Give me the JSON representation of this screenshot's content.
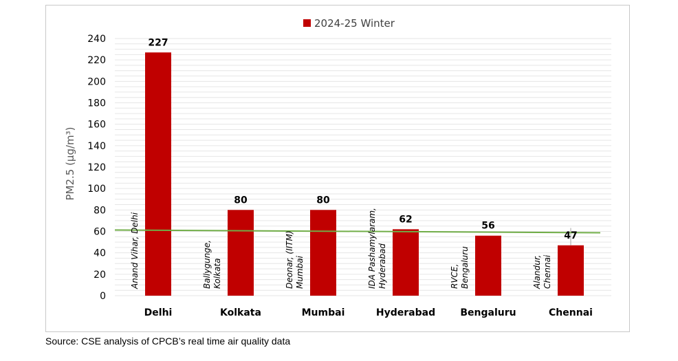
{
  "chart_data": {
    "type": "bar",
    "categories": [
      "Delhi",
      "Kolkata",
      "Mumbai",
      "Hyderabad",
      "Bengaluru",
      "Chennai"
    ],
    "series": [
      {
        "name": "2024-25 Winter",
        "values": [
          227,
          80,
          80,
          62,
          56,
          47
        ],
        "color": "#c00000"
      }
    ],
    "station_labels": [
      [
        "Anand Vihar, Delhi"
      ],
      [
        "Ballygunge,",
        "Kolkata"
      ],
      [
        "Deonar, (IITM)",
        "Mumbai"
      ],
      [
        "IDA Pashamylaram,",
        "Hyderabad"
      ],
      [
        "RVCE,",
        "Bengaluru"
      ],
      [
        "Alandur,",
        "Chennai"
      ]
    ],
    "ylabel": "PM2.5 (µg/m³)",
    "xlabel": "",
    "ylim": [
      0,
      240
    ],
    "yticks": [
      0,
      20,
      40,
      60,
      80,
      100,
      120,
      140,
      160,
      180,
      200,
      220,
      240
    ],
    "reference_line": {
      "value": 60,
      "color": "#70ad47"
    },
    "gridlines": true,
    "legend_position": "top"
  },
  "source": "Source: CSE analysis of CPCB’s real time air quality data"
}
